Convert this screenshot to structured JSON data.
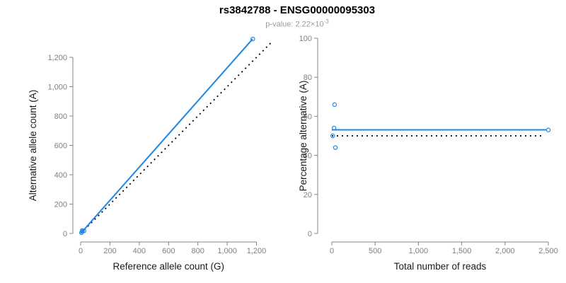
{
  "header": {
    "title": "rs3842788 - ENSG00000095303",
    "subtitle_prefix": "p-value: 2.22×10",
    "subtitle_exponent": "-3"
  },
  "colors": {
    "accent_blue": "#1e87e5",
    "reference_line_black": "#000000",
    "axis_gray": "#848484",
    "tick_label_gray": "#7f7f7f"
  },
  "chart_data": [
    {
      "id": "allele-counts",
      "type": "scatter",
      "xlabel": "Reference allele count (G)",
      "ylabel": "Alternative allele count (A)",
      "xlim": [
        0,
        1310
      ],
      "ylim": [
        0,
        1380
      ],
      "xticks": [
        0,
        200,
        400,
        600,
        800,
        1000,
        1200
      ],
      "yticks": [
        0,
        200,
        400,
        600,
        800,
        1000,
        1200
      ],
      "grid": false,
      "points": [
        {
          "x": 11,
          "y": 21
        },
        {
          "x": 12,
          "y": 14
        },
        {
          "x": 5,
          "y": 5
        },
        {
          "x": 23,
          "y": 18
        },
        {
          "x": 1175,
          "y": 1325
        }
      ],
      "lines": [
        {
          "name": "identity-line",
          "x1": 0,
          "y1": 0,
          "x2": 1310,
          "y2": 1310,
          "style": "dotted",
          "color": "#000000"
        },
        {
          "name": "fit-line",
          "x1": 0,
          "y1": 0,
          "x2": 1174,
          "y2": 1325,
          "style": "solid",
          "color": "#1e87e5"
        }
      ]
    },
    {
      "id": "percentage-alternative",
      "type": "scatter",
      "xlabel": "Total number of reads",
      "ylabel": "Percentage alternative (A)",
      "xlim": [
        0,
        2500
      ],
      "ylim": [
        0,
        100
      ],
      "xticks": [
        0,
        500,
        1000,
        1500,
        2000,
        2500
      ],
      "yticks": [
        0,
        20,
        40,
        60,
        80,
        100
      ],
      "grid": false,
      "points": [
        {
          "x": 32,
          "y": 66
        },
        {
          "x": 26,
          "y": 54
        },
        {
          "x": 10,
          "y": 50
        },
        {
          "x": 41,
          "y": 44
        },
        {
          "x": 2500,
          "y": 53
        }
      ],
      "lines": [
        {
          "name": "reference-line",
          "x1": 0,
          "y1": 50,
          "x2": 2450,
          "y2": 50,
          "style": "dotted",
          "color": "#000000"
        },
        {
          "name": "fit-line",
          "x1": 0,
          "y1": 53.1,
          "x2": 2480,
          "y2": 53.1,
          "style": "solid",
          "color": "#1e87e5"
        }
      ]
    }
  ]
}
